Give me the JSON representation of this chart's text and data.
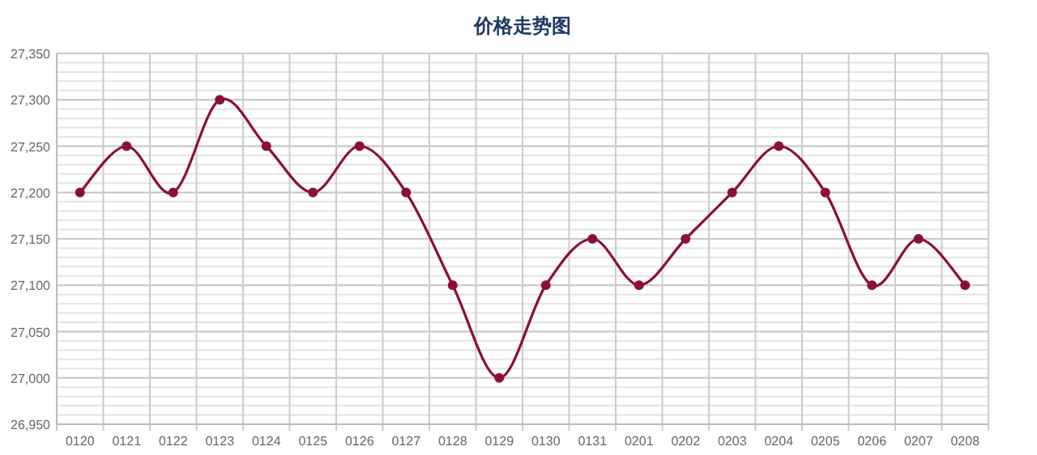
{
  "chart_data": {
    "type": "line",
    "title": "价格走势图",
    "categories": [
      "0120",
      "0121",
      "0122",
      "0123",
      "0124",
      "0125",
      "0126",
      "0127",
      "0128",
      "0129",
      "0130",
      "0131",
      "0201",
      "0202",
      "0203",
      "0204",
      "0205",
      "0206",
      "0207",
      "0208"
    ],
    "series": [
      {
        "color": "#8b0f3a",
        "values": [
          27200,
          27250,
          27200,
          27300,
          27250,
          27200,
          27250,
          27200,
          27100,
          27000,
          27100,
          27150,
          27100,
          27150,
          27200,
          27250,
          27200,
          27100,
          27150,
          27100
        ]
      }
    ],
    "ylim": [
      26950,
      27350
    ],
    "yticks": [
      {
        "value": 26950,
        "label": "26,950"
      },
      {
        "value": 27000,
        "label": "27,000"
      },
      {
        "value": 27050,
        "label": "27,050"
      },
      {
        "value": 27100,
        "label": "27,100"
      },
      {
        "value": 27150,
        "label": "27,150"
      },
      {
        "value": 27200,
        "label": "27,200"
      },
      {
        "value": 27250,
        "label": "27,250"
      },
      {
        "value": 27300,
        "label": "27,300"
      },
      {
        "value": 27350,
        "label": "27,350"
      }
    ],
    "grid": true,
    "marker": "circle",
    "line_style": "solid"
  }
}
